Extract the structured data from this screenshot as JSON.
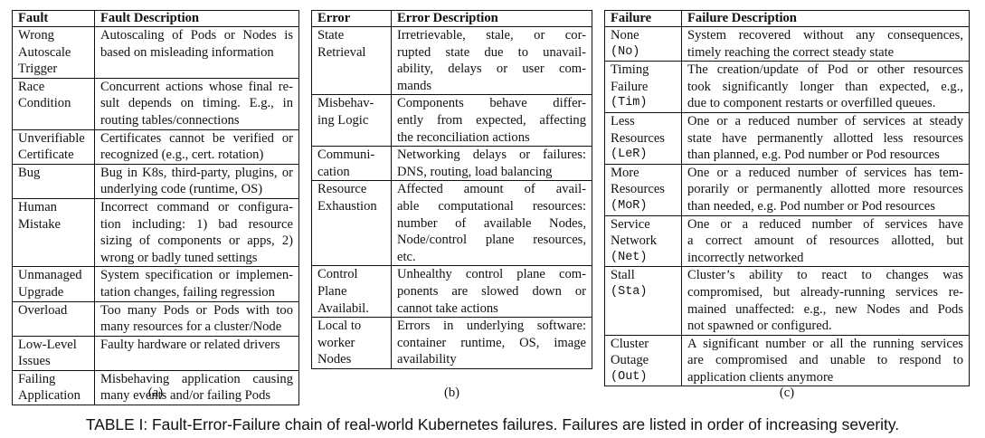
{
  "tables": [
    {
      "header_name": "Fault",
      "header_desc": "Fault Description",
      "sub": "(a)",
      "rows": [
        {
          "name": [
            "Wrong",
            "Autoscale",
            "Trigger"
          ],
          "desc": [
            "Autoscaling of Pods or Nodes is",
            "based on misleading information"
          ]
        },
        {
          "name": [
            "Race",
            "Condition"
          ],
          "desc": [
            "Concurrent actions whose final re-",
            "sult depends on timing. E.g., in",
            "routing tables/connections"
          ]
        },
        {
          "name": [
            "Unverifiable",
            "Certificate"
          ],
          "desc": [
            "Certificates cannot be verified or",
            "recognized (e.g., cert. rotation)"
          ]
        },
        {
          "name": [
            "Bug"
          ],
          "desc": [
            "Bug in K8s, third-party, plugins, or",
            "underlying code (runtime, OS)"
          ]
        },
        {
          "name": [
            "Human",
            "Mistake"
          ],
          "desc": [
            "Incorrect command or configura-",
            "tion including: 1) bad resource",
            "sizing of components or apps, 2)",
            "wrong or badly tuned settings"
          ]
        },
        {
          "name": [
            "Unmanaged",
            "Upgrade"
          ],
          "desc": [
            "System specification or implemen-",
            "tation changes, failing regression"
          ]
        },
        {
          "name": [
            "Overload"
          ],
          "desc": [
            "Too many Pods or Pods with too",
            "many resources for a cluster/Node"
          ]
        },
        {
          "name": [
            "Low-Level",
            "Issues"
          ],
          "desc": [
            "Faulty hardware or related drivers"
          ]
        },
        {
          "name": [
            "Failing",
            "Application"
          ],
          "desc": [
            "Misbehaving application causing",
            "many events and/or failing Pods"
          ]
        }
      ]
    },
    {
      "header_name": "Error",
      "header_desc": "Error Description",
      "sub": "(b)",
      "rows": [
        {
          "name": [
            "State",
            "Retrieval"
          ],
          "desc": [
            "Irretrievable, stale, or cor-",
            "rupted state due to unavail-",
            "ability, delays or user com-",
            "mands"
          ]
        },
        {
          "name": [
            "Misbehav-",
            "ing Logic"
          ],
          "desc": [
            "Components behave differ-",
            "ently from expected, affecting",
            "the reconciliation actions"
          ]
        },
        {
          "name": [
            "Communi-",
            "cation"
          ],
          "desc": [
            "Networking delays or failures:",
            "DNS, routing, load balancing"
          ]
        },
        {
          "name": [
            "Resource",
            "Exhaustion"
          ],
          "desc": [
            "Affected amount of avail-",
            "able computational resources:",
            "number of available Nodes,",
            "Node/control plane resources,",
            "etc."
          ]
        },
        {
          "name": [
            "Control",
            "Plane",
            "Availabil."
          ],
          "desc": [
            "Unhealthy control plane com-",
            "ponents are slowed down or",
            "cannot take actions"
          ]
        },
        {
          "name": [
            "Local to",
            "worker",
            "Nodes"
          ],
          "desc": [
            "Errors in underlying software:",
            "container runtime, OS, image",
            "availability"
          ]
        }
      ]
    },
    {
      "header_name": "Failure",
      "header_desc": "Failure Description",
      "sub": "(c)",
      "rows": [
        {
          "name": [
            "None"
          ],
          "code": "(No)",
          "desc": [
            "System recovered without any consequences,",
            "timely reaching the correct steady state"
          ]
        },
        {
          "name": [
            "Timing",
            "Failure"
          ],
          "code": "(Tim)",
          "desc": [
            "The creation/update of Pod or other resources",
            "took significantly longer than expected, e.g.,",
            "due to component restarts or overfilled queues."
          ]
        },
        {
          "name": [
            "Less",
            "Resources"
          ],
          "code": "(LeR)",
          "desc": [
            "One or a reduced number of services at steady",
            "state have permanently allotted less resources",
            "than planned, e.g. Pod number or Pod resources"
          ]
        },
        {
          "name": [
            "More",
            "Resources"
          ],
          "code": "(MoR)",
          "desc": [
            "One or a reduced number of services has tem-",
            "porarily or permanently allotted more resources",
            "than needed, e.g. Pod number or Pod resources"
          ]
        },
        {
          "name": [
            "Service",
            "Network"
          ],
          "code": "(Net)",
          "desc": [
            "One or a reduced number of services have",
            "a correct amount of resources allotted, but",
            "incorrectly networked"
          ]
        },
        {
          "name": [
            "Stall"
          ],
          "code": "(Sta)",
          "desc": [
            "Cluster’s ability to react to changes was",
            "compromised, but already-running services re-",
            "mained unaffected: e.g., new Nodes and Pods",
            "not spawned or configured."
          ]
        },
        {
          "name": [
            "Cluster",
            "Outage"
          ],
          "code": "(Out)",
          "desc": [
            "A significant number or all the running services",
            "are compromised and unable to respond to",
            "application clients anymore"
          ]
        }
      ]
    }
  ],
  "caption": "TABLE I: Fault-Error-Failure chain of real-world Kubernetes failures. Failures are listed in order of increasing severity."
}
